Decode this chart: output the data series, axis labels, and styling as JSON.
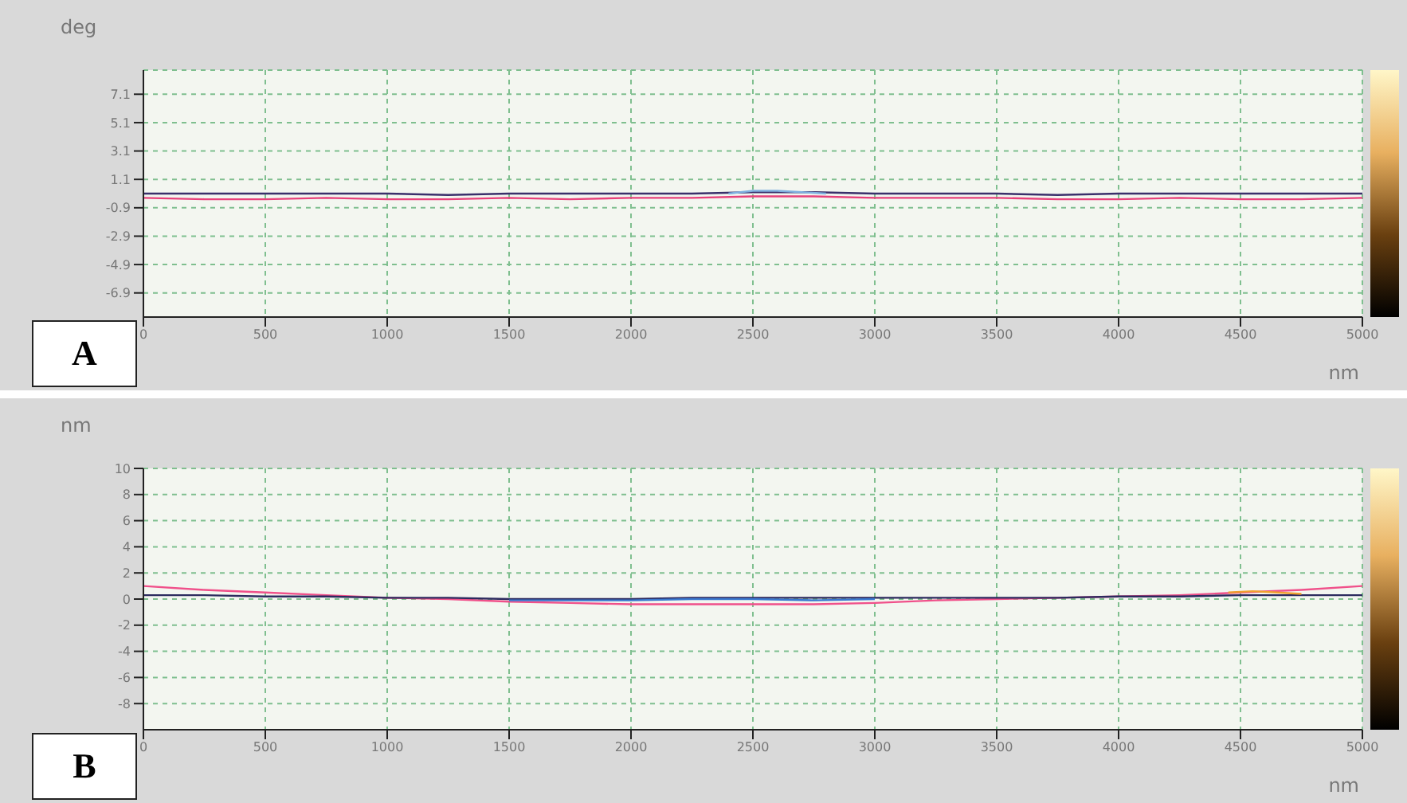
{
  "chart_data": [
    {
      "type": "line",
      "ylabel": "deg",
      "xlabel": "nm",
      "annotations": [
        "A"
      ],
      "xlim": [
        0,
        5000
      ],
      "xticks": [
        0,
        500,
        1000,
        1500,
        2000,
        2500,
        3000,
        3500,
        4000,
        4500,
        5000
      ],
      "ylim": [
        -8.6,
        8.8
      ],
      "yticks": [
        7.1,
        5.1,
        3.1,
        1.1,
        -0.9,
        -2.9,
        -4.9,
        -6.9
      ],
      "grid": true,
      "series": [
        {
          "color": "#3a2f6b",
          "x": [
            0,
            250,
            500,
            750,
            1000,
            1250,
            1500,
            1750,
            2000,
            2250,
            2500,
            2750,
            3000,
            3250,
            3500,
            3750,
            4000,
            4250,
            4500,
            4750,
            5000
          ],
          "values": [
            0.1,
            0.1,
            0.1,
            0.1,
            0.1,
            0.0,
            0.1,
            0.1,
            0.1,
            0.1,
            0.2,
            0.2,
            0.1,
            0.1,
            0.1,
            0.0,
            0.1,
            0.1,
            0.1,
            0.1,
            0.1
          ]
        },
        {
          "color": "#e8407a",
          "x": [
            0,
            250,
            500,
            750,
            1000,
            1250,
            1500,
            1750,
            2000,
            2250,
            2500,
            2750,
            3000,
            3250,
            3500,
            3750,
            4000,
            4250,
            4500,
            4750,
            5000
          ],
          "values": [
            -0.2,
            -0.3,
            -0.3,
            -0.2,
            -0.3,
            -0.3,
            -0.2,
            -0.3,
            -0.2,
            -0.2,
            -0.1,
            -0.1,
            -0.2,
            -0.2,
            -0.2,
            -0.3,
            -0.3,
            -0.2,
            -0.3,
            -0.3,
            -0.2
          ]
        },
        {
          "color": "#7fb0e0",
          "x": [
            2400,
            2500,
            2600,
            2700,
            2800
          ],
          "values": [
            0.1,
            0.3,
            0.3,
            0.2,
            0.1
          ]
        }
      ]
    },
    {
      "type": "line",
      "ylabel": "nm",
      "xlabel": "nm",
      "annotations": [
        "B"
      ],
      "xlim": [
        0,
        5000
      ],
      "xticks": [
        0,
        500,
        1000,
        1500,
        2000,
        2500,
        3000,
        3500,
        4000,
        4500,
        5000
      ],
      "ylim": [
        -10,
        10
      ],
      "yticks": [
        10,
        8,
        6,
        4,
        2,
        0,
        -2,
        -4,
        -6,
        -8
      ],
      "grid": true,
      "series": [
        {
          "color": "#f0508a",
          "x": [
            0,
            250,
            500,
            750,
            1000,
            1250,
            1500,
            1750,
            2000,
            2250,
            2500,
            2750,
            3000,
            3250,
            3500,
            3750,
            4000,
            4250,
            4500,
            4750,
            5000
          ],
          "values": [
            1.0,
            0.7,
            0.5,
            0.3,
            0.1,
            0.0,
            -0.2,
            -0.3,
            -0.4,
            -0.4,
            -0.4,
            -0.4,
            -0.3,
            -0.1,
            0.0,
            0.1,
            0.2,
            0.3,
            0.5,
            0.7,
            1.0
          ]
        },
        {
          "color": "#2c2a5e",
          "x": [
            0,
            250,
            500,
            750,
            1000,
            1250,
            1500,
            1750,
            2000,
            2250,
            2500,
            2750,
            3000,
            3250,
            3500,
            3750,
            4000,
            4250,
            4500,
            4750,
            5000
          ],
          "values": [
            0.3,
            0.3,
            0.2,
            0.2,
            0.1,
            0.1,
            0.0,
            0.0,
            0.0,
            0.1,
            0.1,
            0.1,
            0.1,
            0.1,
            0.1,
            0.1,
            0.2,
            0.2,
            0.3,
            0.3,
            0.3
          ]
        },
        {
          "color": "#3a78d0",
          "x": [
            1500,
            1750,
            2000,
            2250,
            2500,
            2750,
            3000
          ],
          "values": [
            -0.1,
            -0.1,
            -0.1,
            0.0,
            0.0,
            -0.1,
            0.0
          ]
        },
        {
          "color": "#f0a030",
          "x": [
            4450,
            4550,
            4650,
            4750
          ],
          "values": [
            0.5,
            0.6,
            0.5,
            0.4
          ]
        }
      ]
    }
  ]
}
